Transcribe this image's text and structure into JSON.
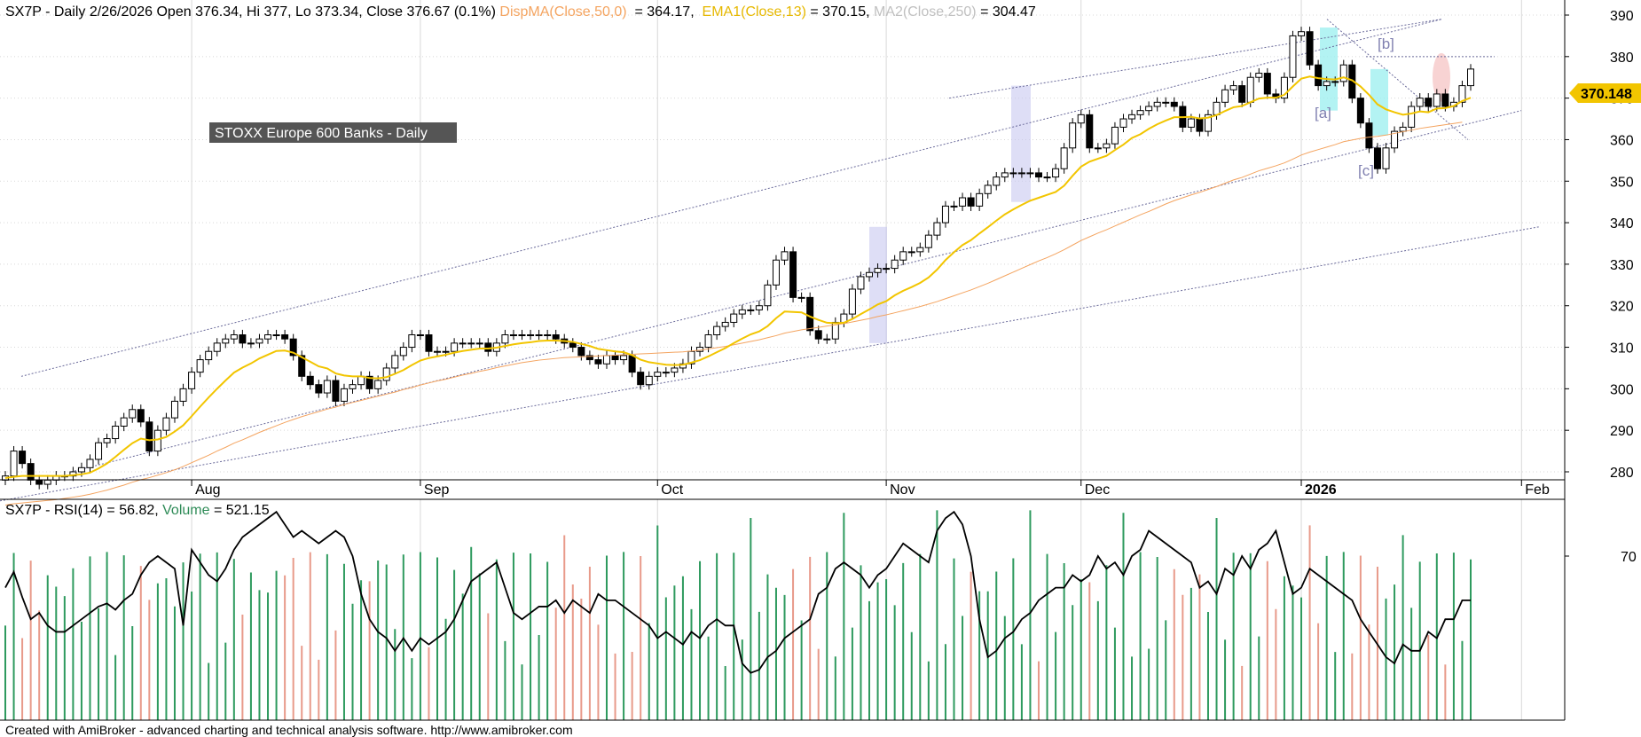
{
  "header": {
    "prefix": "SX7P - Daily 2/26/2026 Open 376.34, Hi 377, Lo 373.34, Close 376.67 (0.1%)",
    "disp_ma_label": "DispMA(Close,50,0)",
    "disp_ma_value": " = 364.17, ",
    "ema_label": "EMA1(Close,13)",
    "ema_value": " = 370.15, ",
    "ma2_label": "MA2(Close,250)",
    "ma2_value": " = 304.47"
  },
  "chart_title_box": "STOXX Europe 600 Banks - Daily",
  "price_tag": "370.148",
  "wave_labels": {
    "a": "[a]",
    "b": "[b]",
    "c": "[c]"
  },
  "lower_header": {
    "rsi_label": "SX7P - RSI(14) = 56.82, ",
    "volume_label": "Volume",
    "volume_value": " = 521.15"
  },
  "footer": "Created with AmiBroker - advanced charting and technical analysis software. http://www.amibroker.com",
  "colors": {
    "disp_ma": "#f4a460",
    "ema": "#f2c500",
    "ma2": "#c0c0c0",
    "volume": "#2e8b57",
    "up_vol": "#2e9a5e",
    "down_vol": "#e89a8a",
    "grid": "#d8d8d8",
    "price_tag": "#f2c500",
    "title_box": "#555555"
  },
  "chart_data": [
    {
      "type": "candlestick",
      "title": "STOXX Europe 600 Banks - Daily",
      "x_tick_labels": [
        "Aug",
        "Sep",
        "Oct",
        "Nov",
        "Dec",
        "2026",
        "Feb"
      ],
      "y_ticks": [
        280,
        290,
        300,
        310,
        320,
        330,
        340,
        350,
        360,
        370,
        380,
        390
      ],
      "ylim": [
        271,
        391
      ],
      "series_names": [
        "DispMA(Close,50,0)",
        "EMA1(Close,13)",
        "MA2(Close,250)"
      ],
      "closes": [
        279,
        285,
        282,
        278,
        277,
        278,
        279,
        279,
        280,
        281,
        283,
        287,
        288,
        291,
        293,
        295,
        292,
        285,
        290,
        293,
        297,
        300,
        304,
        307,
        309,
        311,
        312,
        313,
        311,
        311,
        312,
        313,
        313,
        312,
        308,
        303,
        301,
        299,
        302,
        297,
        300,
        301,
        303,
        300,
        302,
        305,
        308,
        310,
        313,
        313,
        309,
        309,
        309,
        311,
        311,
        311,
        311,
        309,
        311,
        313,
        313,
        313,
        313,
        313,
        313,
        312,
        311,
        310,
        308,
        307,
        306,
        308,
        307,
        308,
        304,
        301,
        303,
        304,
        304,
        305,
        306,
        309,
        310,
        313,
        315,
        316,
        318,
        319,
        319,
        320,
        325,
        331,
        333,
        322,
        322,
        314,
        312,
        312,
        316,
        318,
        324,
        327,
        328,
        329,
        329,
        331,
        333,
        333,
        334,
        337,
        340,
        344,
        344,
        346,
        344,
        347,
        349,
        351,
        352,
        352,
        352,
        352,
        351,
        351,
        353,
        358,
        364,
        366,
        358,
        358,
        359,
        363,
        365,
        366,
        367,
        368,
        369,
        369,
        368,
        363,
        365,
        362,
        366,
        369,
        372,
        373,
        369,
        375,
        376,
        371,
        370,
        375,
        385,
        386,
        378,
        373,
        374,
        374,
        378,
        370,
        364,
        358,
        353,
        358,
        362,
        363,
        368,
        370,
        368,
        371,
        368,
        369,
        373,
        377
      ],
      "ema13": [
        278.5,
        278.8,
        279,
        279,
        279,
        279,
        279,
        279,
        279.2,
        279.4,
        279.8,
        280.8,
        282,
        283.6,
        285.3,
        286.9,
        288,
        287.6,
        287.8,
        288.4,
        289.7,
        291.2,
        293.4,
        295.7,
        297.9,
        300,
        302,
        303.9,
        305.1,
        306.1,
        307.3,
        308.2,
        309.1,
        309.2,
        308.7,
        307.6,
        306.5,
        305.4,
        304.9,
        303.7,
        303.2,
        303,
        303,
        302.6,
        302.5,
        302.8,
        303.6,
        304.5,
        305.7,
        306.8,
        307.4,
        307.8,
        308.2,
        308.7,
        309.1,
        309.4,
        309.7,
        309.7,
        309.9,
        310.3,
        310.7,
        311,
        311.2,
        311.5,
        311.6,
        311.6,
        311.5,
        311.3,
        310.8,
        310.3,
        309.6,
        309.3,
        309,
        308.8,
        308.1,
        307,
        306.4,
        306.1,
        305.8,
        305.7,
        305.8,
        306.3,
        306.9,
        307.8,
        308.8,
        309.8,
        311,
        312.1,
        313.1,
        313.8,
        315.1,
        317,
        318.6,
        318.5,
        318.4,
        317.4,
        316.6,
        315.9,
        315.8,
        315.9,
        316.8,
        318,
        319.1,
        320.3,
        321.1,
        322.5,
        323.6,
        324.5,
        325.5,
        326.8,
        328.7,
        331,
        332.9,
        334.6,
        335.8,
        337.4,
        338.9,
        340.5,
        342,
        343.2,
        344.3,
        345.3,
        346,
        346.7,
        347.4,
        348.9,
        351.3,
        353.5,
        354.7,
        355.4,
        356.1,
        357.5,
        358.8,
        360.4,
        361.3,
        362.6,
        363.7,
        364.6,
        365.4,
        365.4,
        365.5,
        365.1,
        365.3,
        365.9,
        366.9,
        367.8,
        368.1,
        369,
        369.9,
        370.1,
        370.1,
        370.8,
        372.8,
        374.7,
        375.2,
        374.8,
        374.6,
        374.5,
        375,
        374.3,
        372.8,
        370.8,
        368.5,
        367.3,
        366.6,
        366,
        366.3,
        366.8,
        366.6,
        367.5,
        367.6,
        368.1,
        369.3,
        370.1
      ],
      "ma50": [
        272,
        272.3,
        272.5,
        272.7,
        272.9,
        273.1,
        273.3,
        273.6,
        273.9,
        274.2,
        274.6,
        275.1,
        275.6,
        276.2,
        276.8,
        277.5,
        278.1,
        278.6,
        279.2,
        279.8,
        280.5,
        281.3,
        282.2,
        283.1,
        284,
        285,
        285.9,
        286.9,
        287.7,
        288.6,
        289.5,
        290.3,
        291.1,
        291.9,
        292.6,
        293.3,
        293.9,
        294.5,
        295.1,
        295.6,
        296.2,
        296.7,
        297.2,
        297.7,
        298.2,
        298.7,
        299.2,
        299.8,
        300.3,
        300.9,
        301.4,
        301.9,
        302.3,
        302.8,
        303.3,
        303.7,
        304.2,
        304.6,
        305.1,
        305.5,
        305.9,
        306.3,
        306.6,
        306.9,
        307.1,
        307.3,
        307.5,
        307.6,
        307.7,
        307.8,
        307.9,
        308,
        308.1,
        308.2,
        308.3,
        308.4,
        308.5,
        308.6,
        308.7,
        308.8,
        308.9,
        309.1,
        309.3,
        309.6,
        309.9,
        310.2,
        310.6,
        311,
        311.4,
        311.8,
        312.3,
        312.8,
        313.4,
        313.8,
        314.2,
        314.5,
        314.8,
        315.1,
        315.4,
        315.7,
        316.1,
        316.5,
        316.9,
        317.4,
        317.8,
        318.3,
        318.8,
        319.3,
        319.8,
        320.4,
        321,
        321.7,
        322.4,
        323.1,
        323.8,
        324.6,
        325.4,
        326.3,
        327.2,
        328.1,
        329,
        329.9,
        330.8,
        331.6,
        332.5,
        333.5,
        334.6,
        335.7,
        336.6,
        337.5,
        338.3,
        339.2,
        340.1,
        341,
        341.9,
        342.7,
        343.6,
        344.5,
        345.3,
        346,
        346.7,
        347.3,
        348,
        348.7,
        349.5,
        350.3,
        350.9,
        351.7,
        352.5,
        353.1,
        353.7,
        354.4,
        355.3,
        356.3,
        357,
        357.6,
        358.2,
        358.8,
        359.5,
        359.9,
        360.3,
        360.6,
        360.8,
        361.1,
        361.5,
        361.9,
        362.3,
        362.7,
        363,
        363.3,
        363.6,
        363.9,
        364.2
      ],
      "rsi": [
        60,
        65,
        57,
        50,
        52,
        48,
        46,
        46,
        48,
        50,
        52,
        54,
        55,
        53,
        56,
        58,
        64,
        68,
        70,
        68,
        66,
        48,
        72,
        68,
        64,
        62,
        66,
        72,
        76,
        78,
        80,
        82,
        84,
        80,
        76,
        78,
        76,
        74,
        76,
        78,
        76,
        70,
        58,
        50,
        46,
        44,
        40,
        44,
        40,
        44,
        42,
        44,
        46,
        50,
        56,
        62,
        64,
        66,
        68,
        60,
        52,
        50,
        52,
        54,
        54,
        56,
        52,
        56,
        54,
        52,
        58,
        56,
        56,
        54,
        52,
        50,
        48,
        44,
        46,
        44,
        42,
        46,
        44,
        48,
        50,
        48,
        48,
        36,
        33,
        34,
        38,
        40,
        44,
        46,
        48,
        50,
        58,
        60,
        66,
        68,
        66,
        64,
        60,
        64,
        66,
        70,
        74,
        72,
        70,
        68,
        78,
        82,
        84,
        80,
        70,
        50,
        38,
        40,
        44,
        46,
        50,
        52,
        56,
        58,
        60,
        60,
        64,
        62,
        64,
        70,
        66,
        68,
        64,
        70,
        72,
        78,
        76,
        74,
        72,
        70,
        68,
        60,
        62,
        58,
        66,
        64,
        70,
        66,
        72,
        74,
        78,
        68,
        58,
        60,
        66,
        64,
        62,
        60,
        58,
        56,
        50,
        46,
        42,
        38,
        36,
        42,
        40,
        40,
        46,
        44,
        50,
        50,
        56,
        56
      ],
      "rsi_yticks": [
        70
      ]
    }
  ]
}
